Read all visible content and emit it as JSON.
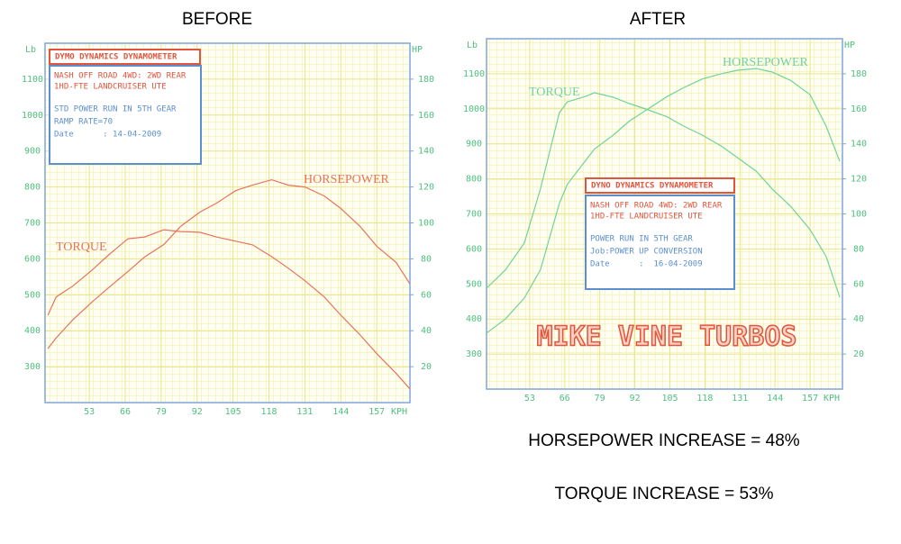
{
  "chart_data": [
    {
      "type": "line",
      "title": "BEFORE",
      "ylabel": "Lb",
      "y2label": "HP",
      "xlabel": "KPH",
      "x": [
        38,
        41,
        47,
        54,
        60,
        67,
        73,
        80,
        86,
        93,
        99,
        106,
        112,
        119,
        125,
        131,
        138,
        144,
        151,
        157,
        164,
        169
      ],
      "xlim": [
        37,
        169
      ],
      "xticks": [
        53,
        66,
        79,
        92,
        105,
        118,
        131,
        144,
        157
      ],
      "ylim": [
        200,
        1200
      ],
      "yticks": [
        300,
        400,
        500,
        600,
        700,
        800,
        900,
        1000,
        1100
      ],
      "y2lim": [
        0,
        200
      ],
      "y2ticks": [
        20,
        40,
        60,
        80,
        100,
        120,
        140,
        160,
        180
      ],
      "grid": true,
      "series": [
        {
          "name": "TORQUE",
          "color": "#e8735a",
          "values": [
            443,
            494,
            524,
            569,
            611,
            656,
            661,
            681,
            676,
            674,
            661,
            649,
            639,
            606,
            574,
            539,
            494,
            443,
            388,
            336,
            281,
            238
          ]
        },
        {
          "name": "HORSEPOWER",
          "color": "#e8735a",
          "axis": "y2",
          "values": [
            30,
            36,
            46,
            56,
            64,
            73,
            81,
            88,
            98,
            106,
            111,
            118,
            121,
            124,
            121,
            120,
            115,
            108,
            98,
            87,
            78,
            66
          ]
        }
      ],
      "info_box": {
        "title": "DYMO DYNAMICS DYNAMOMETER",
        "vehicle": [
          "NASH OFF ROAD 4WD: 2WD REAR",
          "1HD-FTE LANDCRUISER UTE"
        ],
        "run": [
          "STD POWER RUN IN 5TH GEAR",
          "RAMP RATE=70",
          "Date      : 14-04-2009"
        ]
      }
    },
    {
      "type": "line",
      "title": "AFTER",
      "ylabel": "Lb",
      "y2label": "HP",
      "xlabel": "KPH",
      "x": [
        37,
        44,
        51,
        57,
        64,
        67,
        74,
        77,
        84,
        90,
        97,
        104,
        110,
        117,
        124,
        130,
        137,
        143,
        150,
        157,
        163,
        168
      ],
      "xlim": [
        37,
        169
      ],
      "xticks": [
        53,
        66,
        79,
        92,
        105,
        118,
        131,
        144,
        157
      ],
      "ylim": [
        200,
        1200
      ],
      "yticks": [
        300,
        400,
        500,
        600,
        700,
        800,
        900,
        1000,
        1100
      ],
      "y2lim": [
        0,
        200
      ],
      "y2ticks": [
        20,
        40,
        60,
        80,
        100,
        120,
        140,
        160,
        180
      ],
      "grid": true,
      "series": [
        {
          "name": "TORQUE",
          "color": "#6fd39a",
          "values": [
            488,
            540,
            617,
            771,
            989,
            1020,
            1036,
            1046,
            1033,
            1015,
            997,
            977,
            951,
            925,
            894,
            861,
            822,
            771,
            720,
            655,
            578,
            462
          ]
        },
        {
          "name": "HORSEPOWER",
          "color": "#6fd39a",
          "axis": "y2",
          "values": [
            32,
            40,
            52,
            68,
            106,
            117,
            131,
            137,
            145,
            153,
            160,
            167,
            172,
            177,
            180,
            182,
            183,
            181,
            176,
            168,
            150,
            130
          ]
        }
      ],
      "info_box": {
        "title": "DYNO DYNAMICS DYNAMOMETER",
        "vehicle": [
          "NASH OFF ROAD 4WD: 2WD REAR",
          "1HD-FTE LANDCRUISER UTE"
        ],
        "run": [
          "POWER RUN IN 5TH GEAR",
          "Job:POWER UP CONVERSION",
          "Date      :  16-04-2009"
        ]
      },
      "watermark": "MIKE VINE TURBOS"
    }
  ],
  "footer": [
    "HORSEPOWER INCREASE = 48%",
    "TORQUE INCREASE = 53%"
  ]
}
